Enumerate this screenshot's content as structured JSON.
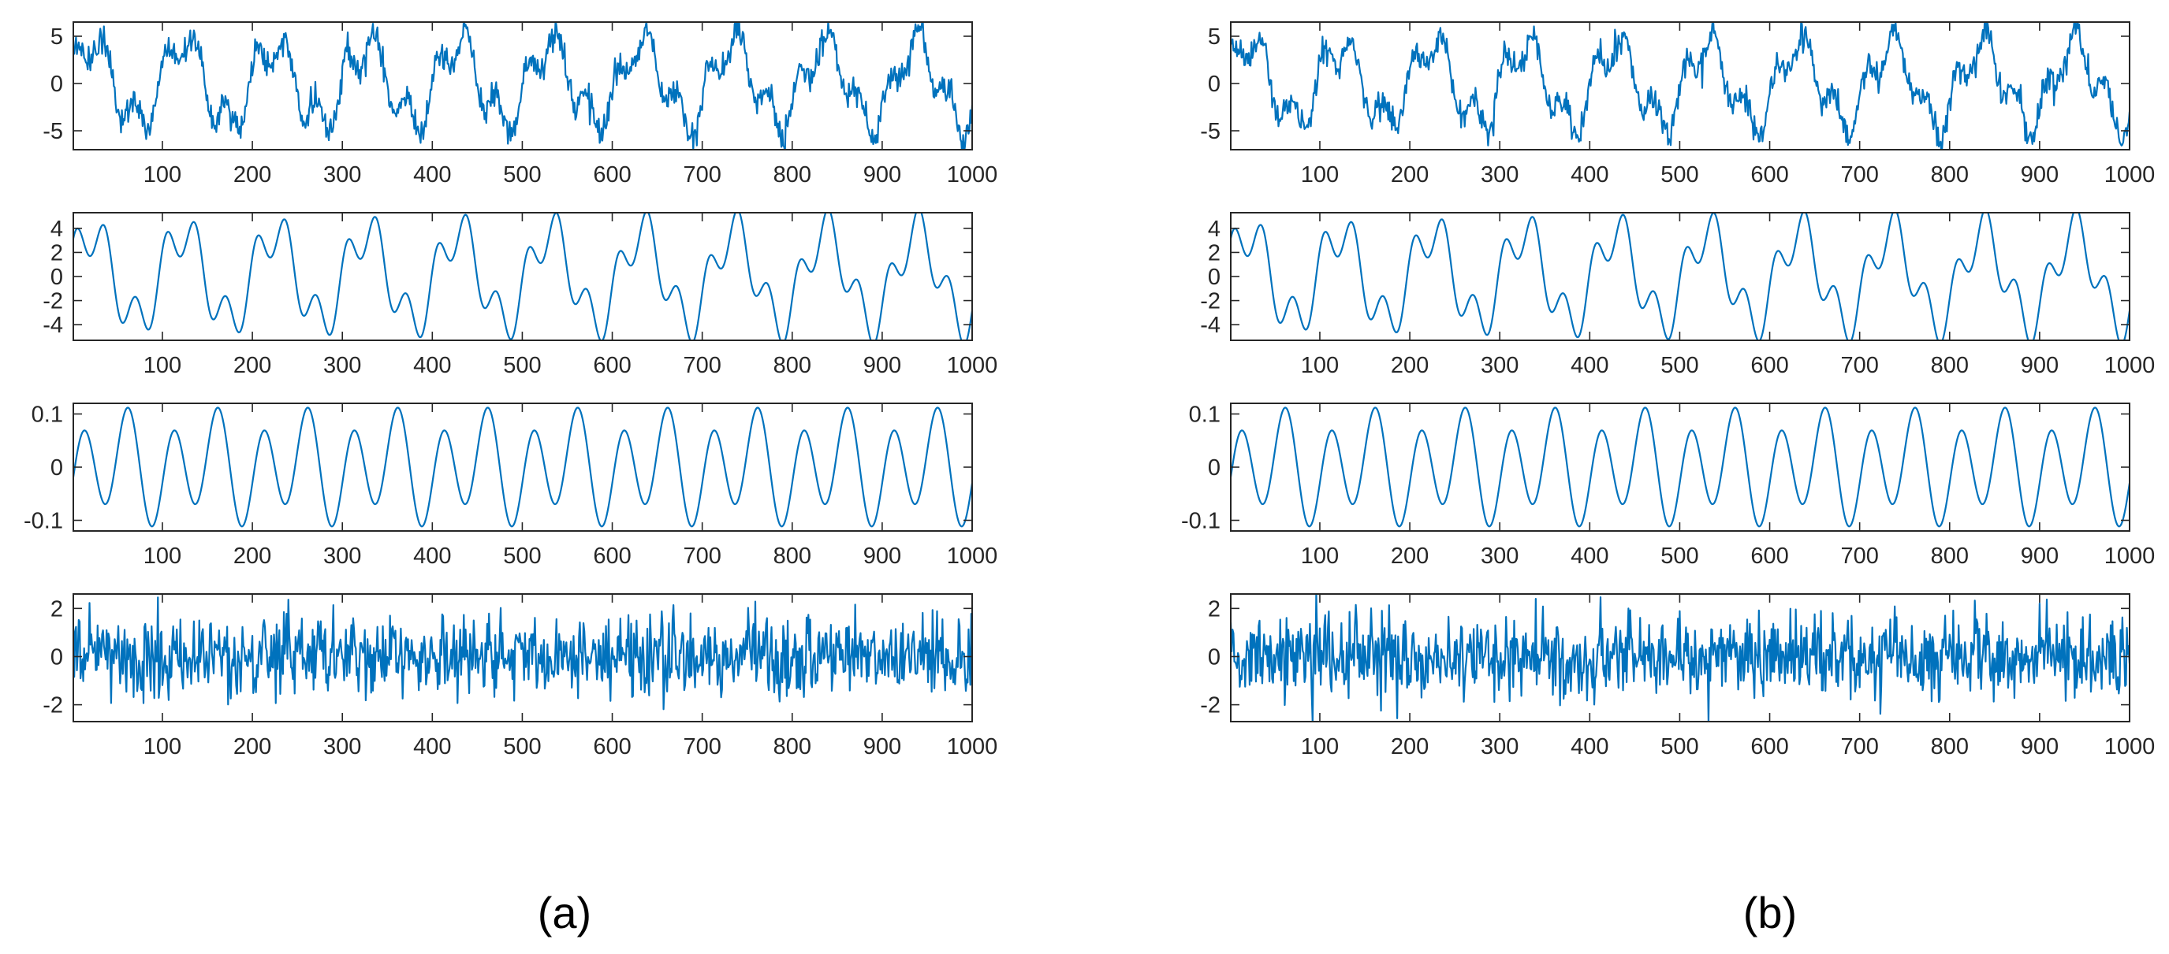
{
  "panel_labels": [
    "(a)",
    "(b)"
  ],
  "line_color": "#0072BD",
  "chart_data": [
    {
      "type": "line",
      "panel": "(a)",
      "row": 1,
      "xlim": [
        1,
        1000
      ],
      "ylim": [
        -7,
        6.5
      ],
      "xticks": [
        100,
        200,
        300,
        400,
        500,
        600,
        700,
        800,
        900,
        1000
      ],
      "yticks": [
        -5,
        0,
        5
      ],
      "signal": {
        "kind": "sum",
        "components": [
          {
            "amp": 4.0,
            "period": 102,
            "phase": 0.3
          },
          {
            "amp": 2.0,
            "period": 33.5,
            "phase": 1.0
          },
          {
            "amp": 0.1,
            "period": 20,
            "phase": 0.5
          }
        ],
        "noise": 0.75
      }
    },
    {
      "type": "line",
      "panel": "(a)",
      "row": 2,
      "xlim": [
        1,
        1000
      ],
      "ylim": [
        -5.3,
        5.3
      ],
      "xticks": [
        100,
        200,
        300,
        400,
        500,
        600,
        700,
        800,
        900,
        1000
      ],
      "yticks": [
        -4,
        -2,
        0,
        2,
        4
      ],
      "signal": {
        "kind": "sum",
        "components": [
          {
            "amp": 3.7,
            "period": 102,
            "phase": 0.3
          },
          {
            "amp": 2.0,
            "period": 33.5,
            "phase": 1.0
          }
        ],
        "noise": 0
      }
    },
    {
      "type": "line",
      "panel": "(a)",
      "row": 3,
      "xlim": [
        1,
        1000
      ],
      "ylim": [
        -0.12,
        0.12
      ],
      "xticks": [
        100,
        200,
        300,
        400,
        500,
        600,
        700,
        800,
        900,
        1000
      ],
      "yticks": [
        -0.1,
        0,
        0.1
      ],
      "signal": {
        "kind": "sum",
        "components": [
          {
            "amp": 0.09,
            "period": 50,
            "phase": 0
          },
          {
            "amp": 0.03,
            "period": 100,
            "phase": 4.7
          }
        ],
        "noise": 0
      }
    },
    {
      "type": "line",
      "panel": "(a)",
      "row": 4,
      "xlim": [
        1,
        1000
      ],
      "ylim": [
        -2.7,
        2.6
      ],
      "xticks": [
        100,
        200,
        300,
        400,
        500,
        600,
        700,
        800,
        900,
        1000
      ],
      "yticks": [
        -2,
        0,
        2
      ],
      "signal": {
        "kind": "noise",
        "std": 0.85,
        "seed": 17
      }
    },
    {
      "type": "line",
      "panel": "(b)",
      "row": 1,
      "xlim": [
        1,
        1000
      ],
      "ylim": [
        -7,
        6.5
      ],
      "xticks": [
        100,
        200,
        300,
        400,
        500,
        600,
        700,
        800,
        900,
        1000
      ],
      "yticks": [
        -5,
        0,
        5
      ],
      "signal": {
        "kind": "sum",
        "components": [
          {
            "amp": 4.0,
            "period": 102,
            "phase": 0.3
          },
          {
            "amp": 2.0,
            "period": 33.5,
            "phase": 1.0
          },
          {
            "amp": 0.1,
            "period": 20,
            "phase": 0.5
          }
        ],
        "noise": 0.75
      }
    },
    {
      "type": "line",
      "panel": "(b)",
      "row": 2,
      "xlim": [
        1,
        1000
      ],
      "ylim": [
        -5.3,
        5.3
      ],
      "xticks": [
        100,
        200,
        300,
        400,
        500,
        600,
        700,
        800,
        900,
        1000
      ],
      "yticks": [
        -4,
        -2,
        0,
        2,
        4
      ],
      "signal": {
        "kind": "sum",
        "components": [
          {
            "amp": 3.7,
            "period": 102,
            "phase": 0.3
          },
          {
            "amp": 2.0,
            "period": 33.5,
            "phase": 1.0
          }
        ],
        "noise": 0
      }
    },
    {
      "type": "line",
      "panel": "(b)",
      "row": 3,
      "xlim": [
        1,
        1000
      ],
      "ylim": [
        -0.12,
        0.12
      ],
      "xticks": [
        100,
        200,
        300,
        400,
        500,
        600,
        700,
        800,
        900,
        1000
      ],
      "yticks": [
        -0.1,
        0,
        0.1
      ],
      "signal": {
        "kind": "sum",
        "components": [
          {
            "amp": 0.09,
            "period": 50,
            "phase": 0
          },
          {
            "amp": 0.03,
            "period": 100,
            "phase": 4.7
          }
        ],
        "noise": 0
      }
    },
    {
      "type": "line",
      "panel": "(b)",
      "row": 4,
      "xlim": [
        1,
        1000
      ],
      "ylim": [
        -2.7,
        2.6
      ],
      "xticks": [
        100,
        200,
        300,
        400,
        500,
        600,
        700,
        800,
        900,
        1000
      ],
      "yticks": [
        -2,
        0,
        2
      ],
      "signal": {
        "kind": "noise",
        "std": 0.85,
        "seed": 29
      }
    }
  ]
}
